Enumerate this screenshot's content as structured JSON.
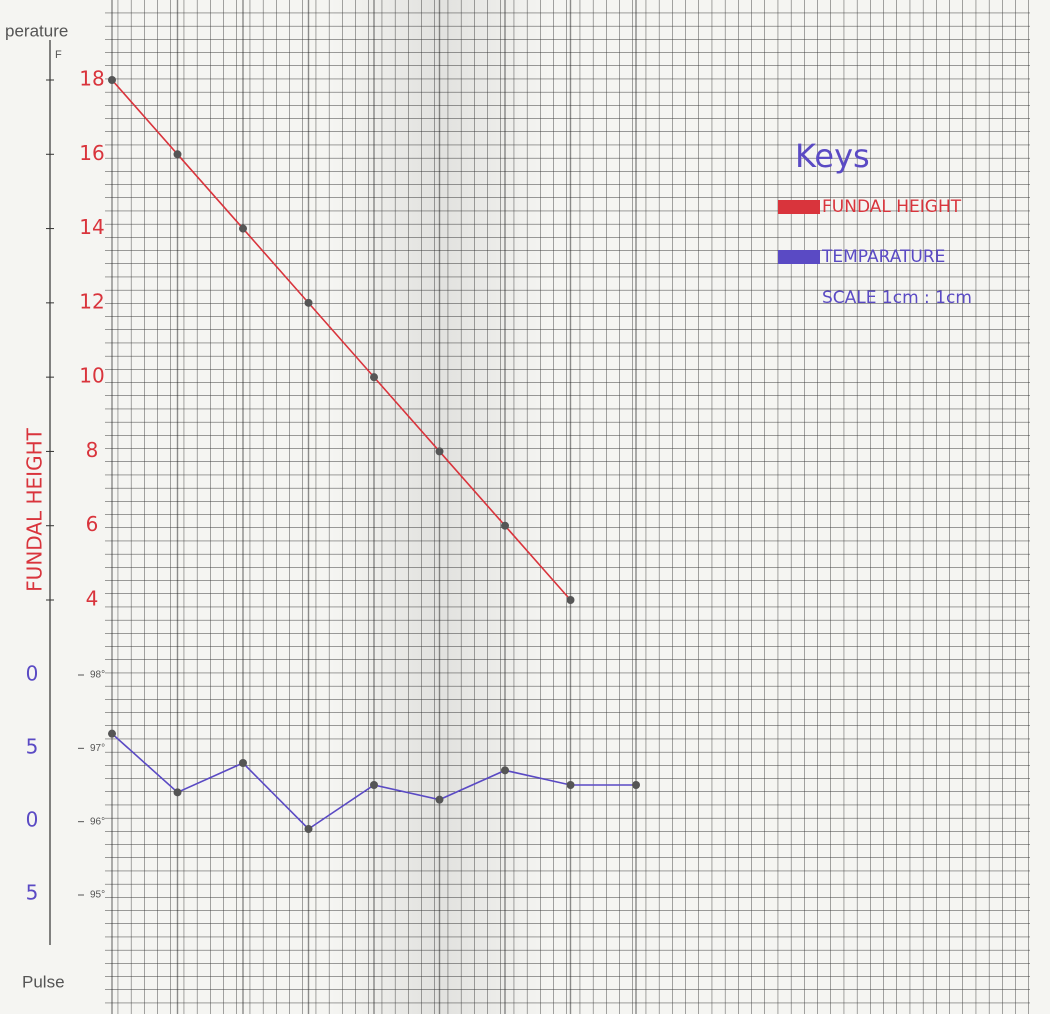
{
  "chart_data": {
    "type": "line",
    "temperature_axis_title": "perature",
    "temperature_unit": "F",
    "pulse_axis_title": "Pulse",
    "pulse_labels": [
      "0",
      "5",
      "0",
      "5"
    ],
    "y_axis_label": "FUNDAL HEIGHT",
    "legend_title": "Keys",
    "scale_note": "SCALE 1cm : 1cm",
    "categories": [
      null,
      null,
      null,
      null,
      null,
      null,
      null,
      null,
      null
    ],
    "series": [
      {
        "name": "FUNDAL HEIGHT",
        "color": "#d9343c",
        "values": [
          18,
          16,
          14,
          12,
          10,
          8,
          6,
          4,
          null
        ]
      },
      {
        "name": "TEMPARATURE",
        "color": "#5a4ac4",
        "axis": "y2",
        "values": [
          97.2,
          96.4,
          96.8,
          95.9,
          96.5,
          96.3,
          96.7,
          96.5,
          96.5
        ]
      }
    ],
    "ylim": [
      4,
      18
    ],
    "yticks": [
      4,
      6,
      8,
      10,
      12,
      14,
      16,
      18
    ],
    "y2lim": [
      95,
      98
    ],
    "y2ticks": [
      {
        "value": 95,
        "label": "95°"
      },
      {
        "value": 96,
        "label": "96°"
      },
      {
        "value": 97,
        "label": "97°"
      },
      {
        "value": 98,
        "label": "98°"
      }
    ]
  }
}
